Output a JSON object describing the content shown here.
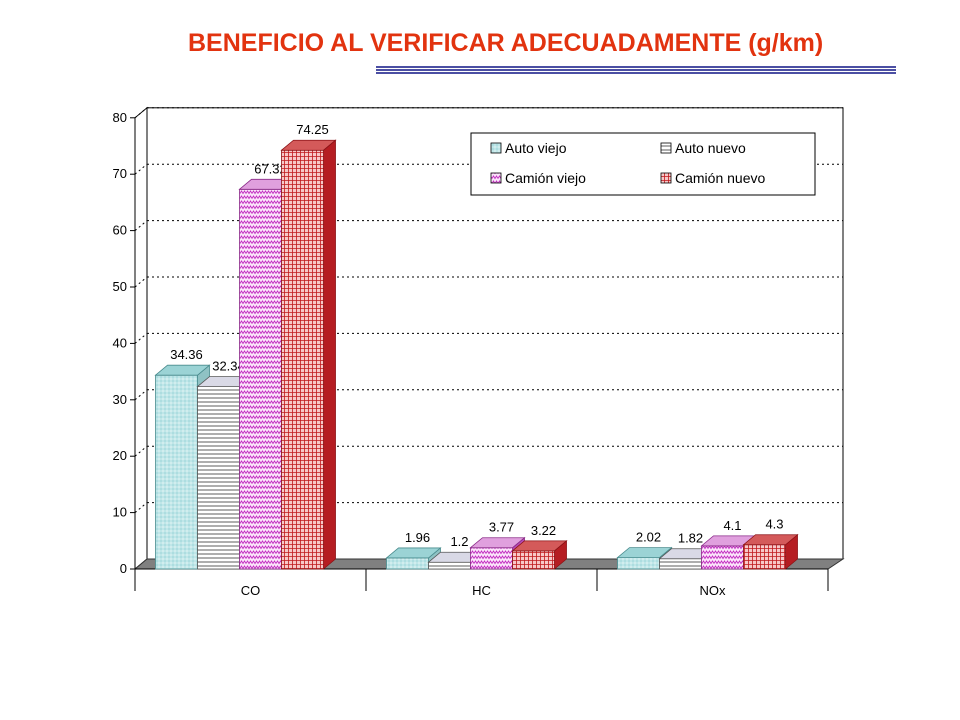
{
  "header": {
    "title": "BENEFICIO AL VERIFICAR ADECUADAMENTE (g/km)"
  },
  "chart_data": {
    "type": "bar",
    "title": "BENEFICIO AL VERIFICAR ADECUADAMENTE (g/km)",
    "categories": [
      "CO",
      "HC",
      "NOx"
    ],
    "series": [
      {
        "name": "Auto viejo",
        "values": [
          34.36,
          1.96,
          2.02
        ],
        "color": "#bfe6e8"
      },
      {
        "name": "Auto nuevo",
        "values": [
          32.34,
          1.2,
          1.82
        ],
        "color": "#ffffff"
      },
      {
        "name": "Camión viejo",
        "values": [
          67.32,
          3.77,
          4.1
        ],
        "color": "#f4b6f0"
      },
      {
        "name": "Camión nuevo",
        "values": [
          74.25,
          3.22,
          4.3
        ],
        "color": "#f08a8a"
      }
    ],
    "value_labels": [
      [
        "34.36",
        "1.96",
        "2.02"
      ],
      [
        "32.34",
        "1.2",
        "1.82"
      ],
      [
        "67.32",
        "3.77",
        "4.1"
      ],
      [
        "74.25",
        "3.22",
        "4.3"
      ]
    ],
    "ylim": [
      0,
      80
    ],
    "yticks": [
      "0",
      "10",
      "20",
      "30",
      "40",
      "50",
      "60",
      "70",
      "80"
    ],
    "grid": true,
    "legend_position": "top-right",
    "style": "3d-bar"
  }
}
